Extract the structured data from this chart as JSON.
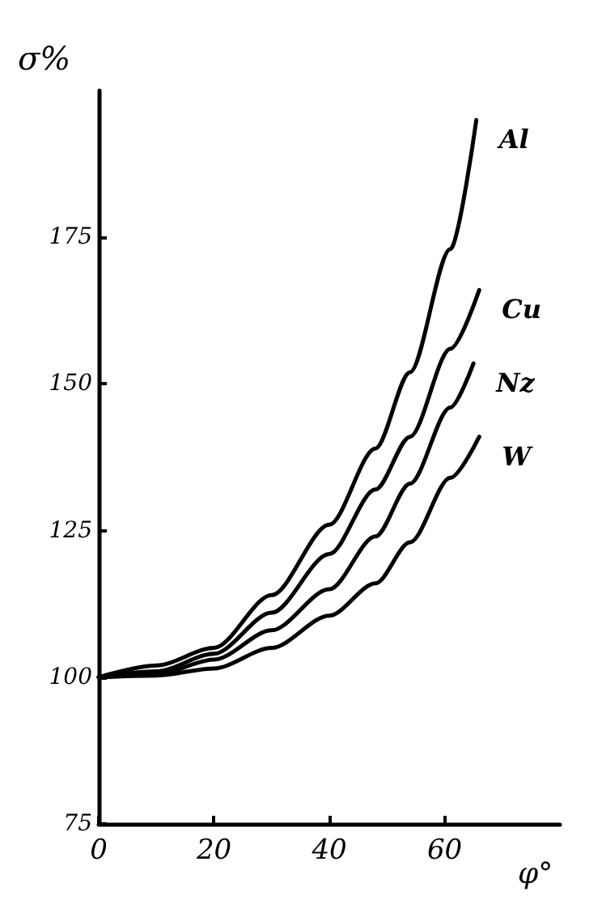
{
  "chart_data": {
    "type": "line",
    "ylabel": "σ%",
    "xlabel": "φ°",
    "xlim": [
      0,
      80
    ],
    "xticks": [
      0,
      20,
      40,
      60
    ],
    "ylim": [
      75,
      200
    ],
    "yticks": [
      75,
      100,
      125,
      150,
      175
    ],
    "grid": false,
    "legend": false,
    "marker": "none",
    "line_style": "solid",
    "series": [
      {
        "name": "Al",
        "color": "#000000",
        "x": [
          0,
          10,
          20,
          30,
          40,
          48,
          54,
          61,
          65.5
        ],
        "values": [
          100,
          102,
          105,
          114,
          126,
          139,
          152,
          173,
          195
        ]
      },
      {
        "name": "Cu",
        "color": "#000000",
        "x": [
          0,
          10,
          20,
          30,
          40,
          48,
          54,
          61,
          66
        ],
        "values": [
          100,
          101,
          104,
          111,
          121,
          132,
          141,
          156,
          166
        ]
      },
      {
        "name": "Nz",
        "color": "#000000",
        "x": [
          0,
          10,
          20,
          30,
          40,
          48,
          54,
          61,
          65
        ],
        "values": [
          100,
          100.5,
          103,
          108,
          115,
          124,
          133,
          146,
          153.5
        ]
      },
      {
        "name": "W",
        "color": "#000000",
        "x": [
          0,
          10,
          20,
          30,
          40,
          48,
          54,
          61,
          66
        ],
        "values": [
          100,
          100.3,
          101.5,
          105,
          110.5,
          116,
          123,
          134,
          141
        ]
      }
    ]
  }
}
